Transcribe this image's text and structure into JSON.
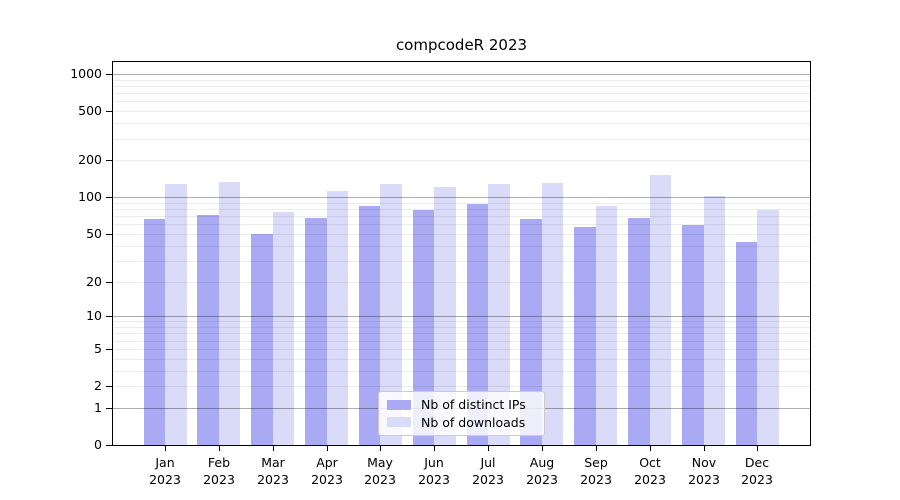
{
  "chart_data": {
    "type": "bar",
    "title": "compcodeR 2023",
    "categories": [
      "Jan",
      "Feb",
      "Mar",
      "Apr",
      "May",
      "Jun",
      "Jul",
      "Aug",
      "Sep",
      "Oct",
      "Nov",
      "Dec"
    ],
    "year_label": "2023",
    "series": [
      {
        "name": "Nb of distinct IPs",
        "color": "#a9a9f4",
        "values": [
          66,
          72,
          50,
          68,
          85,
          78,
          88,
          66,
          57,
          68,
          59,
          43
        ]
      },
      {
        "name": "Nb of downloads",
        "color": "#dadaf9",
        "values": [
          127,
          133,
          75,
          113,
          128,
          120,
          128,
          131,
          84,
          151,
          103,
          78
        ]
      }
    ],
    "y_ticks": [
      0,
      1,
      2,
      5,
      10,
      20,
      50,
      100,
      200,
      500,
      1000
    ],
    "y_scale": "log10(1+x)",
    "ylim": [
      0,
      1250
    ],
    "grid": true,
    "legend_position": "bottom-center"
  }
}
